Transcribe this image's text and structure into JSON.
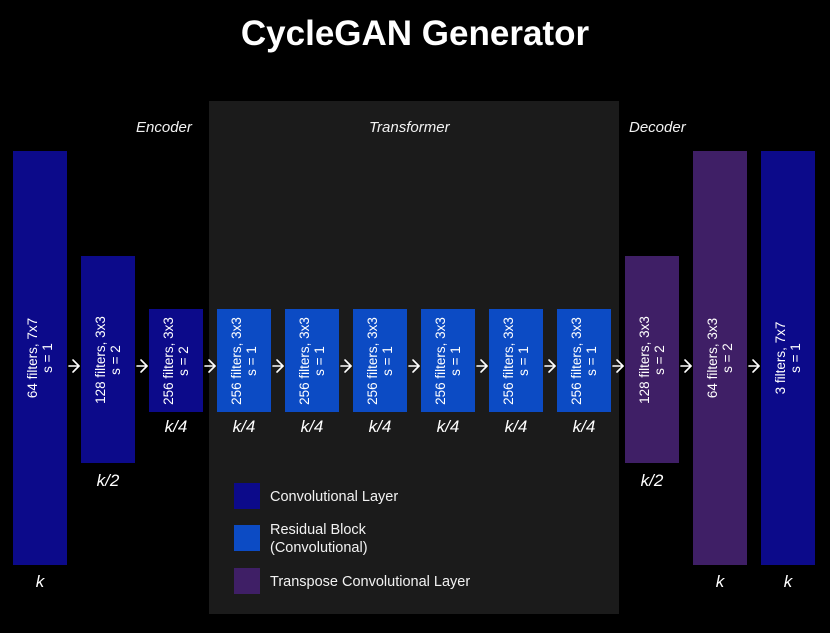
{
  "title": "CycleGAN Generator",
  "sections": {
    "encoder": "Encoder",
    "transformer": "Transformer",
    "decoder": "Decoder"
  },
  "colors": {
    "conv": "#0c0a8a",
    "residual": "#0c4bc4",
    "transpose": "#3f1f66"
  },
  "blocks": [
    {
      "filters": "64 filters, 7x7",
      "stride": "s = 1",
      "type": "conv"
    },
    {
      "filters": "128 filters, 3x3",
      "stride": "s = 2",
      "type": "conv"
    },
    {
      "filters": "256 filters, 3x3",
      "stride": "s = 2",
      "type": "conv"
    },
    {
      "filters": "256 filters, 3x3",
      "stride": "s = 1",
      "type": "residual"
    },
    {
      "filters": "256 filters, 3x3",
      "stride": "s = 1",
      "type": "residual"
    },
    {
      "filters": "256 filters, 3x3",
      "stride": "s = 1",
      "type": "residual"
    },
    {
      "filters": "256 filters, 3x3",
      "stride": "s = 1",
      "type": "residual"
    },
    {
      "filters": "256 filters, 3x3",
      "stride": "s = 1",
      "type": "residual"
    },
    {
      "filters": "256 filters, 3x3",
      "stride": "s = 1",
      "type": "residual"
    },
    {
      "filters": "128 filters, 3x3",
      "stride": "s = 2",
      "type": "transpose"
    },
    {
      "filters": "64 filters, 3x3",
      "stride": "s = 2",
      "type": "transpose"
    },
    {
      "filters": "3 filters, 7x7",
      "stride": "s = 1",
      "type": "conv"
    }
  ],
  "size_labels": [
    "k",
    "k/2",
    "k/4",
    "k/4",
    "k/4",
    "k/4",
    "k/4",
    "k/4",
    "k/4",
    "k/2",
    "k",
    "k"
  ],
  "legend": [
    {
      "label": "Convolutional Layer",
      "type": "conv"
    },
    {
      "label": "Residual Block\n(Convolutional)",
      "type": "residual"
    },
    {
      "label": "Transpose Convolutional Layer",
      "type": "transpose"
    }
  ]
}
